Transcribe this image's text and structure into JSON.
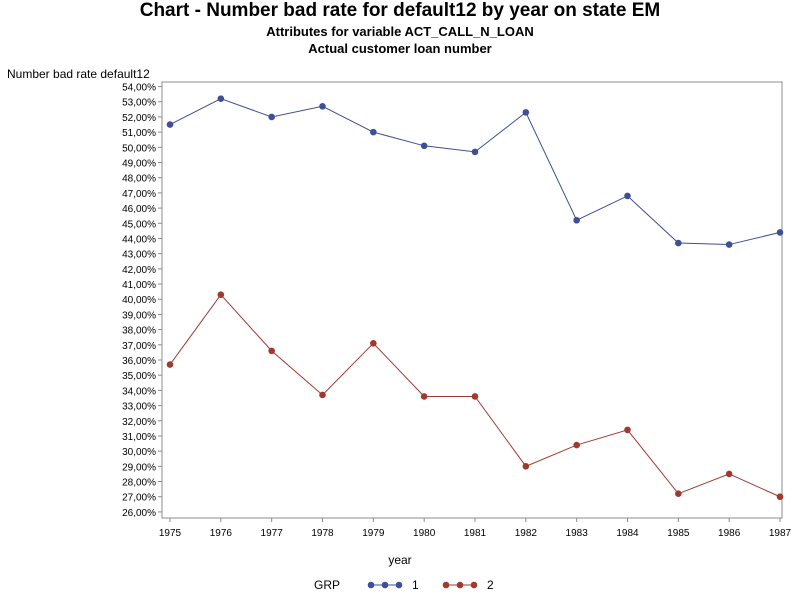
{
  "chart_data": {
    "type": "line",
    "title": "Chart - Number bad rate for default12 by year on state EM",
    "subtitle": [
      "Attributes for variable ACT_CALL_N_LOAN",
      "Actual customer loan number"
    ],
    "xlabel": "year",
    "ylabel": "Number bad rate default12",
    "x": [
      1975,
      1976,
      1977,
      1978,
      1979,
      1980,
      1981,
      1982,
      1983,
      1984,
      1985,
      1986,
      1987
    ],
    "ylim": [
      25.6,
      54.3
    ],
    "yticks": [
      "26,00%",
      "27,00%",
      "28,00%",
      "29,00%",
      "30,00%",
      "31,00%",
      "32,00%",
      "33,00%",
      "34,00%",
      "35,00%",
      "36,00%",
      "37,00%",
      "38,00%",
      "39,00%",
      "40,00%",
      "41,00%",
      "42,00%",
      "43,00%",
      "44,00%",
      "45,00%",
      "46,00%",
      "47,00%",
      "48,00%",
      "49,00%",
      "50,00%",
      "51,00%",
      "52,00%",
      "53,00%",
      "54,00%"
    ],
    "legend_title": "GRP",
    "legend_position": "bottom",
    "grid": false,
    "series": [
      {
        "name": "1",
        "color": "#3d4f96",
        "values": [
          51.5,
          53.2,
          52.0,
          52.7,
          51.0,
          50.1,
          49.7,
          52.3,
          45.2,
          46.8,
          43.7,
          43.6,
          44.4
        ]
      },
      {
        "name": "2",
        "color": "#a03a30",
        "values": [
          35.7,
          40.3,
          36.6,
          33.7,
          37.1,
          33.6,
          33.6,
          29.0,
          30.4,
          31.4,
          27.2,
          28.5,
          27.0
        ]
      }
    ]
  }
}
